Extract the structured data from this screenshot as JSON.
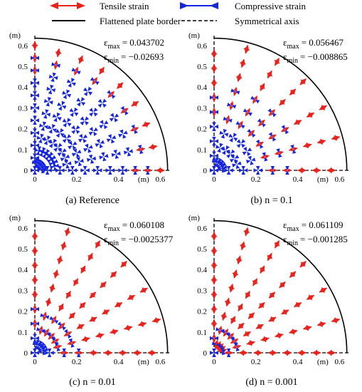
{
  "legend": {
    "tensile": "Tensile strain",
    "border": "Flattened plate border",
    "compressive": "Compressive strain",
    "symmetry": "Symmetrical axis"
  },
  "colors": {
    "tensile": "#e8231c",
    "compressive": "#1626e0",
    "border": "#000000"
  },
  "chart_data": [
    {
      "type": "scatter",
      "caption": "(a) Reference",
      "eps_max_label": "max",
      "eps_max": "= 0.043702",
      "eps_min_label": "min",
      "eps_min": "= −0.02693",
      "xlabel": "(m)",
      "ylabel": "(m)",
      "xticks": [
        "0",
        "0.2",
        "0.4",
        "0.6"
      ],
      "yticks": [
        "0",
        "0.1",
        "0.2",
        "0.3",
        "0.4",
        "0.5",
        "0.6"
      ],
      "xlim": [
        0,
        0.65
      ],
      "ylim": [
        0,
        0.65
      ],
      "border_radius": 0.635,
      "radial_lines_deg": [
        0,
        11.25,
        22.5,
        33.75,
        45,
        56.25,
        67.5,
        78.75,
        90
      ],
      "radial_step": 0.06,
      "strain_pattern": "compressive radial lines; tensile near outer border"
    },
    {
      "type": "scatter",
      "caption": "(b) n = 0.1",
      "eps_max_label": "max",
      "eps_max": "= 0.056467",
      "eps_min_label": "min",
      "eps_min": "= −0.008865",
      "xlabel": "(m)",
      "ylabel": "(m)",
      "xticks": [
        "0",
        "0.2",
        "0.4",
        "0.6"
      ],
      "yticks": [
        "0",
        "0.1",
        "0.2",
        "0.3",
        "0.4",
        "0.5",
        "0.6"
      ],
      "xlim": [
        0,
        0.65
      ],
      "ylim": [
        0,
        0.65
      ],
      "border_radius": 0.635,
      "radial_lines_deg": [
        0,
        15,
        30,
        45,
        60,
        75,
        90
      ],
      "radial_step": 0.07,
      "strain_pattern": "compressive inner zone; tensile outer zone"
    },
    {
      "type": "scatter",
      "caption": "(c) n = 0.01",
      "eps_max_label": "max",
      "eps_max": "= 0.060108",
      "eps_min_label": "min",
      "eps_min": "= −0.0025377",
      "xlabel": "(m)",
      "ylabel": "(m)",
      "xticks": [
        "0",
        "0.2",
        "0.4",
        "0.6"
      ],
      "yticks": [
        "0",
        "0.1",
        "0.2",
        "0.3",
        "0.4",
        "0.5",
        "0.6"
      ],
      "xlim": [
        0,
        0.65
      ],
      "ylim": [
        0,
        0.65
      ],
      "border_radius": 0.635,
      "radial_lines_deg": [
        0,
        15,
        30,
        45,
        60,
        75,
        90
      ],
      "radial_step": 0.07,
      "strain_pattern": "compressive near center; tensile elsewhere"
    },
    {
      "type": "scatter",
      "caption": "(d) n = 0.001",
      "eps_max_label": "max",
      "eps_max": "= 0.061109",
      "eps_min_label": "min",
      "eps_min": "= −0.001285",
      "xlabel": "(m)",
      "ylabel": "(m)",
      "xticks": [
        "0",
        "0.2",
        "0.4",
        "0.6"
      ],
      "yticks": [
        "0",
        "0.1",
        "0.2",
        "0.3",
        "0.4",
        "0.5",
        "0.6"
      ],
      "xlim": [
        0,
        0.65
      ],
      "ylim": [
        0,
        0.65
      ],
      "border_radius": 0.635,
      "radial_lines_deg": [
        0,
        15,
        30,
        45,
        60,
        75,
        90
      ],
      "radial_step": 0.07,
      "strain_pattern": "compressive only at center; tensile elsewhere"
    }
  ]
}
